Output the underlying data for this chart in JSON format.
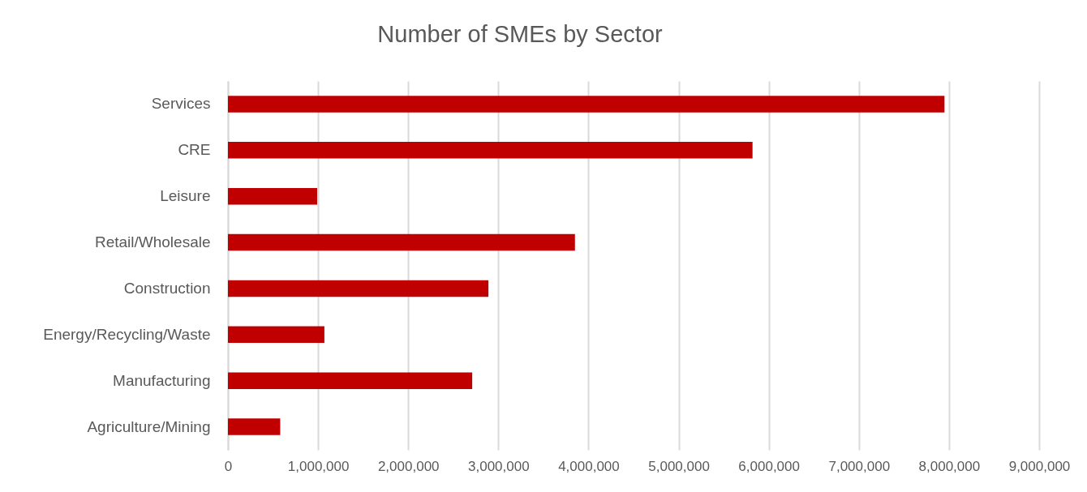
{
  "chart_data": {
    "type": "bar",
    "orientation": "horizontal",
    "title": "Number of SMEs by Sector",
    "categories": [
      "Services",
      "CRE",
      "Leisure",
      "Retail/Wholesale",
      "Construction",
      "Energy/Recycling/Waste",
      "Manufacturing",
      "Agriculture/Mining"
    ],
    "values": [
      7950000,
      5820000,
      990000,
      3850000,
      2890000,
      1070000,
      2710000,
      580000
    ],
    "color": "#c00000",
    "xlim": [
      0,
      9000000
    ],
    "xticks": [
      {
        "value": 0,
        "label": "0"
      },
      {
        "value": 1000000,
        "label": "1,000,000"
      },
      {
        "value": 2000000,
        "label": "2,000,000"
      },
      {
        "value": 3000000,
        "label": "3,000,000"
      },
      {
        "value": 4000000,
        "label": "4,000,000"
      },
      {
        "value": 5000000,
        "label": "5,000,000"
      },
      {
        "value": 6000000,
        "label": "6,000,000"
      },
      {
        "value": 7000000,
        "label": "7,000,000"
      },
      {
        "value": 8000000,
        "label": "8,000,000"
      },
      {
        "value": 9000000,
        "label": "9,000,000"
      }
    ],
    "grid": "x"
  }
}
